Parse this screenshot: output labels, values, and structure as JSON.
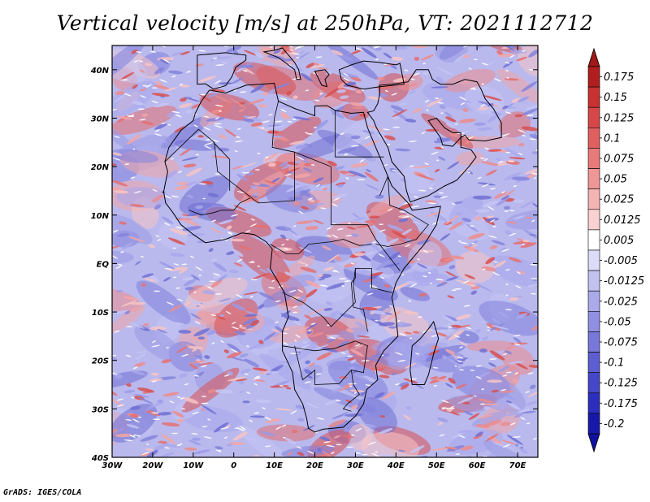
{
  "title": "Vertical velocity [m/s] at 250hPa, VT: 2021112712",
  "credit": "GrADS: IGES/COLA",
  "map": {
    "lat_labels": [
      "40N",
      "30N",
      "20N",
      "10N",
      "EQ",
      "10S",
      "20S",
      "30S",
      "40S"
    ],
    "lat_values": [
      40,
      30,
      20,
      10,
      0,
      -10,
      -20,
      -30,
      -40
    ],
    "lon_labels": [
      "30W",
      "20W",
      "10W",
      "0",
      "10E",
      "20E",
      "30E",
      "40E",
      "50E",
      "60E",
      "70E"
    ],
    "lon_values": [
      -30,
      -20,
      -10,
      0,
      10,
      20,
      30,
      40,
      50,
      60,
      70
    ],
    "lon_range": [
      -30,
      75
    ],
    "lat_range": [
      -40,
      45
    ]
  },
  "colorbar": {
    "labels": [
      "0.175",
      "0.15",
      "0.125",
      "0.1",
      "0.075",
      "0.05",
      "0.025",
      "0.0125",
      "0.005",
      "-0.005",
      "-0.0125",
      "-0.025",
      "-0.05",
      "-0.075",
      "-0.1",
      "-0.125",
      "-0.175",
      "-0.2"
    ],
    "colors": [
      "#b01e1e",
      "#c83232",
      "#d64848",
      "#e06060",
      "#e87a7a",
      "#ef9696",
      "#f5b4b4",
      "#fad2d2",
      "#ffffff",
      "#dcdcf8",
      "#c2c2f0",
      "#aaaaea",
      "#9090e2",
      "#7878da",
      "#5e5ed2",
      "#4646c8",
      "#2e2ebe",
      "#1818a8"
    ],
    "top_arrow_color": "#a01818",
    "bottom_arrow_color": "#1010a0"
  }
}
